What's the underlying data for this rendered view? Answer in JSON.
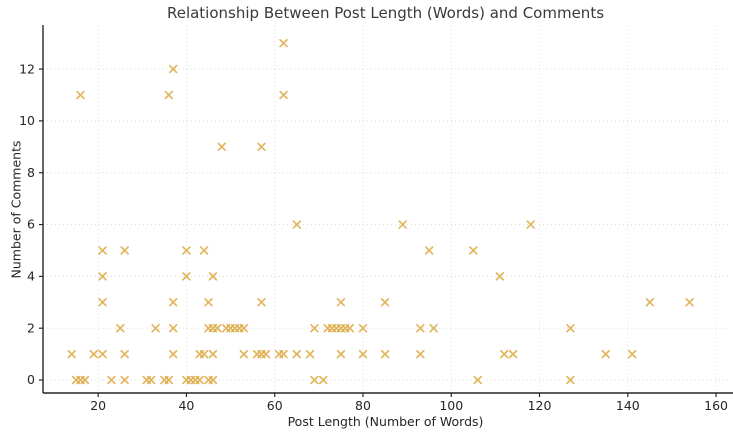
{
  "chart_data": {
    "type": "scatter",
    "title": "Relationship Between Post Length (Words) and Comments",
    "xlabel": "Post Length (Number of Words)",
    "ylabel": "Number of Comments",
    "xlim": [
      7.5,
      162.7
    ],
    "ylim": [
      -0.5,
      13.7
    ],
    "xticks": [
      20,
      40,
      60,
      80,
      100,
      120,
      140,
      160
    ],
    "yticks": [
      0,
      2,
      4,
      6,
      8,
      10,
      12
    ],
    "grid": "dotted",
    "legend": "none",
    "marker": "x",
    "marker_color": "#dba437",
    "marker_opacity": 0.8,
    "grid_color": "#d9d9d9",
    "spine_color": "#262626",
    "points": [
      [
        62,
        13
      ],
      [
        37,
        12
      ],
      [
        16,
        11
      ],
      [
        36,
        11
      ],
      [
        62,
        11
      ],
      [
        48,
        9
      ],
      [
        57,
        9
      ],
      [
        65,
        6
      ],
      [
        89,
        6
      ],
      [
        118,
        6
      ],
      [
        21,
        5
      ],
      [
        26,
        5
      ],
      [
        40,
        5
      ],
      [
        44,
        5
      ],
      [
        95,
        5
      ],
      [
        105,
        5
      ],
      [
        21,
        4
      ],
      [
        40,
        4
      ],
      [
        46,
        4
      ],
      [
        111,
        4
      ],
      [
        21,
        3
      ],
      [
        37,
        3
      ],
      [
        45,
        3
      ],
      [
        57,
        3
      ],
      [
        75,
        3
      ],
      [
        85,
        3
      ],
      [
        145,
        3
      ],
      [
        154,
        3
      ],
      [
        25,
        2
      ],
      [
        33,
        2
      ],
      [
        37,
        2
      ],
      [
        45,
        2
      ],
      [
        46,
        2
      ],
      [
        47,
        2
      ],
      [
        49,
        2
      ],
      [
        50,
        2
      ],
      [
        51,
        2
      ],
      [
        52,
        2
      ],
      [
        53,
        2
      ],
      [
        69,
        2
      ],
      [
        72,
        2
      ],
      [
        73,
        2
      ],
      [
        74,
        2
      ],
      [
        75,
        2
      ],
      [
        76,
        2
      ],
      [
        77,
        2
      ],
      [
        80,
        2
      ],
      [
        93,
        2
      ],
      [
        96,
        2
      ],
      [
        127,
        2
      ],
      [
        14,
        1
      ],
      [
        19,
        1
      ],
      [
        21,
        1
      ],
      [
        26,
        1
      ],
      [
        37,
        1
      ],
      [
        43,
        1
      ],
      [
        44,
        1
      ],
      [
        46,
        1
      ],
      [
        53,
        1
      ],
      [
        56,
        1
      ],
      [
        57,
        1
      ],
      [
        58,
        1
      ],
      [
        61,
        1
      ],
      [
        62,
        1
      ],
      [
        65,
        1
      ],
      [
        68,
        1
      ],
      [
        75,
        1
      ],
      [
        80,
        1
      ],
      [
        85,
        1
      ],
      [
        93,
        1
      ],
      [
        112,
        1
      ],
      [
        114,
        1
      ],
      [
        135,
        1
      ],
      [
        141,
        1
      ],
      [
        15,
        0
      ],
      [
        16,
        0
      ],
      [
        17,
        0
      ],
      [
        23,
        0
      ],
      [
        26,
        0
      ],
      [
        31,
        0
      ],
      [
        32,
        0
      ],
      [
        35,
        0
      ],
      [
        36,
        0
      ],
      [
        40,
        0
      ],
      [
        41,
        0
      ],
      [
        42,
        0
      ],
      [
        43,
        0
      ],
      [
        45,
        0
      ],
      [
        46,
        0
      ],
      [
        69,
        0
      ],
      [
        71,
        0
      ],
      [
        106,
        0
      ],
      [
        127,
        0
      ]
    ]
  }
}
